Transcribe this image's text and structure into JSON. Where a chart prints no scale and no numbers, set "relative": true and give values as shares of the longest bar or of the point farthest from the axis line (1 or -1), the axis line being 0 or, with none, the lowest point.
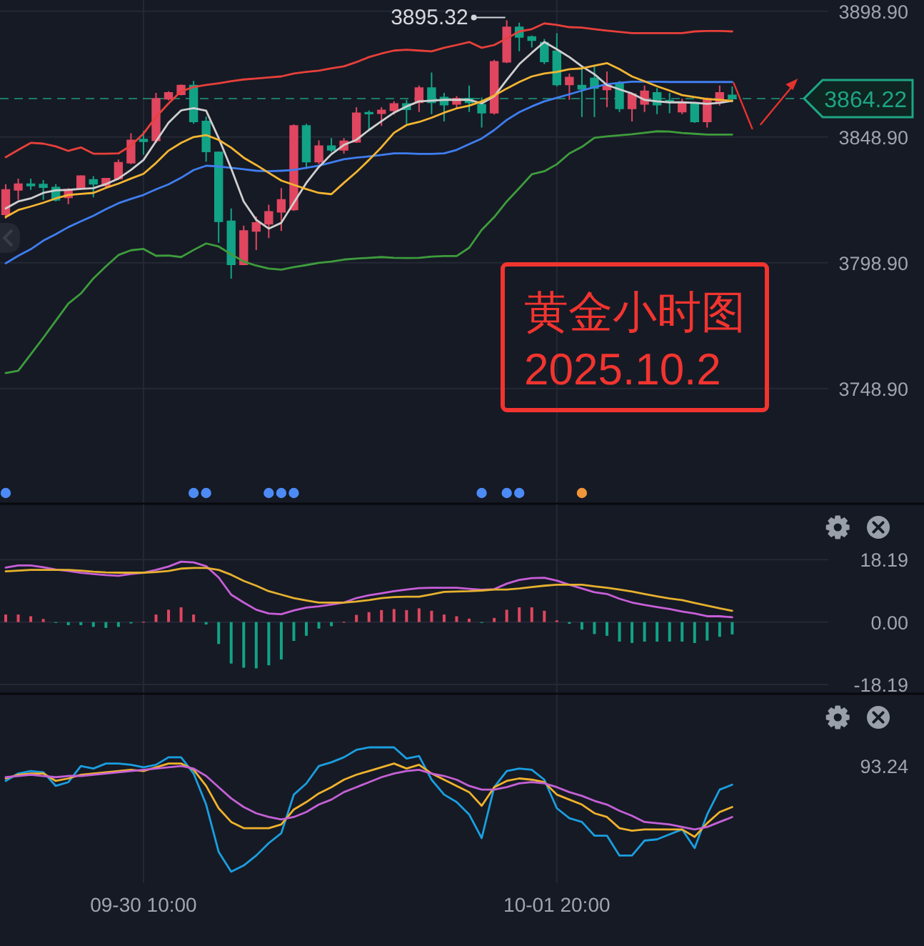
{
  "chart_data": [
    {
      "type": "candlestick",
      "categories": [
        null,
        null,
        null,
        null,
        null,
        null,
        null,
        null,
        null,
        null,
        null,
        null,
        null,
        null,
        null,
        null,
        null,
        null,
        null,
        null,
        null,
        null,
        null,
        null,
        null,
        null,
        null,
        null,
        null,
        null,
        null,
        null,
        null,
        null,
        null,
        null,
        null,
        null,
        null,
        null,
        null,
        null,
        null,
        null,
        null,
        null,
        null,
        null,
        null,
        null,
        null,
        null,
        null,
        null,
        null,
        null,
        null,
        null,
        null
      ],
      "ohlc": [
        [
          3818.2,
          3830.2,
          3816.5,
          3827.9
        ],
        [
          3827.9,
          3832.4,
          3823.9,
          3830.2
        ],
        [
          3830.2,
          3832.4,
          3827.9,
          3829.6
        ],
        [
          3830.0,
          3831.8,
          3823.9,
          3829.0
        ],
        [
          3828.8,
          3830.2,
          3823.3,
          3823.9
        ],
        [
          3824.9,
          3828.6,
          3822.2,
          3828.0
        ],
        [
          3828.6,
          3833.7,
          3828.0,
          3833.4
        ],
        [
          3831.9,
          3833.4,
          3824.9,
          3830.3
        ],
        [
          3829.6,
          3832.4,
          3828.6,
          3832.4
        ],
        [
          3832.4,
          3840.0,
          3831.9,
          3838.7
        ],
        [
          3838.7,
          3850.4,
          3838.1,
          3847.6
        ],
        [
          3847.9,
          3851.3,
          3841.9,
          3847.2
        ],
        [
          3847.6,
          3866.5,
          3846.6,
          3864.1
        ],
        [
          3864.1,
          3867.1,
          3863.5,
          3866.5
        ],
        [
          3865.9,
          3869.8,
          3865.5,
          3869.4
        ],
        [
          3869.4,
          3871.2,
          3854.2,
          3855.1
        ],
        [
          3855.1,
          3857.0,
          3839.1,
          3843.2
        ],
        [
          3842.8,
          3843.2,
          3806.9,
          3815.4
        ],
        [
          3815.4,
          3820.5,
          3792.6,
          3798.3
        ],
        [
          3798.3,
          3813.7,
          3797.9,
          3811.6
        ],
        [
          3811.6,
          3817.3,
          3804.0,
          3814.8
        ],
        [
          3814.4,
          3822.0,
          3808.7,
          3819.2
        ],
        [
          3819.2,
          3828.6,
          3811.6,
          3823.9
        ],
        [
          3820.1,
          3854.0,
          3819.5,
          3853.3
        ],
        [
          3853.3,
          3854.2,
          3836.2,
          3839.1
        ],
        [
          3839.1,
          3847.6,
          3838.1,
          3845.3
        ],
        [
          3845.3,
          3848.5,
          3842.8,
          3843.8
        ],
        [
          3843.8,
          3848.5,
          3842.3,
          3847.2
        ],
        [
          3847.0,
          3860.8,
          3846.6,
          3858.4
        ],
        [
          3858.6,
          3859.5,
          3851.3,
          3858.2
        ],
        [
          3858.4,
          3860.8,
          3853.3,
          3859.5
        ],
        [
          3859.5,
          3863.1,
          3857.8,
          3862.1
        ],
        [
          3862.1,
          3863.7,
          3854.2,
          3859.9
        ],
        [
          3862.7,
          3869.4,
          3858.9,
          3868.4
        ],
        [
          3868.4,
          3874.6,
          3858.0,
          3862.7
        ],
        [
          3864.6,
          3866.5,
          3855.1,
          3861.8
        ],
        [
          3862.1,
          3865.2,
          3860.4,
          3864.2
        ],
        [
          3864.2,
          3869.4,
          3858.9,
          3862.7
        ],
        [
          3861.8,
          3864.6,
          3852.7,
          3858.6
        ],
        [
          3858.6,
          3879.6,
          3857.9,
          3878.8
        ],
        [
          3878.8,
          3895.32,
          3878.3,
          3892.5
        ],
        [
          3892.5,
          3894.4,
          3883.0,
          3888.7
        ],
        [
          3888.7,
          3889.3,
          3884.5,
          3887.4
        ],
        [
          3886.4,
          3887.9,
          3877.9,
          3879.0
        ],
        [
          3883.0,
          3890.2,
          3869.0,
          3869.8
        ],
        [
          3869.8,
          3874.1,
          3863.7,
          3872.6
        ],
        [
          3869.4,
          3876.6,
          3856.9,
          3868.0
        ],
        [
          3872.2,
          3877.2,
          3856.9,
          3868.4
        ],
        [
          3867.8,
          3875.0,
          3860.8,
          3869.7
        ],
        [
          3870.3,
          3871.2,
          3858.9,
          3860.3
        ],
        [
          3860.3,
          3866.5,
          3855.1,
          3866.0
        ],
        [
          3862.1,
          3869.4,
          3858.9,
          3867.1
        ],
        [
          3866.5,
          3868.4,
          3858.0,
          3861.8
        ],
        [
          3863.4,
          3866.5,
          3858.4,
          3862.8
        ],
        [
          3859.0,
          3864.1,
          3858.0,
          3862.7
        ],
        [
          3862.1,
          3862.7,
          3854.5,
          3855.1
        ],
        [
          3855.1,
          3864.6,
          3852.7,
          3864.1
        ],
        [
          3862.7,
          3869.4,
          3861.4,
          3866.5
        ],
        [
          3865.5,
          3869.0,
          3862.7,
          3864.22
        ]
      ],
      "colors": [
        "#e0465f",
        "#e0465f",
        "#12a386",
        "#12a386",
        "#12a386",
        "#e0465f",
        "#e0465f",
        "#12a386",
        "#e0465f",
        "#e0465f",
        "#e0465f",
        "#12a386",
        "#e0465f",
        "#e0465f",
        "#e0465f",
        "#12a386",
        "#12a386",
        "#12a386",
        "#12a386",
        "#e0465f",
        "#e0465f",
        "#e0465f",
        "#e0465f",
        "#e0465f",
        "#12a386",
        "#e0465f",
        "#12a386",
        "#e0465f",
        "#e0465f",
        "#12a386",
        "#e0465f",
        "#e0465f",
        "#12a386",
        "#e0465f",
        "#12a386",
        "#12a386",
        "#e0465f",
        "#12a386",
        "#12a386",
        "#e0465f",
        "#e0465f",
        "#12a386",
        "#12a386",
        "#12a386",
        "#12a386",
        "#e0465f",
        "#12a386",
        "#12a386",
        "#e0465f",
        "#12a386",
        "#e0465f",
        "#e0465f",
        "#12a386",
        "#12a386",
        "#e0465f",
        "#12a386",
        "#e0465f",
        "#e0465f",
        "#12a386"
      ],
      "series": [
        {
          "type": "line",
          "color": "#e8403a",
          "values": [
            3840.9,
            3843.8,
            3846.6,
            3846.3,
            3845.2,
            3843.4,
            3844.8,
            3842.3,
            3842.3,
            3842.4,
            3845.5,
            3850.3,
            3856.9,
            3862.3,
            3867.1,
            3868.8,
            3869.6,
            3870.3,
            3871.1,
            3871.8,
            3872.2,
            3872.6,
            3873.0,
            3874.2,
            3874.8,
            3875.3,
            3876.2,
            3877.0,
            3878.7,
            3880.7,
            3882.1,
            3883.3,
            3883.6,
            3883.3,
            3883.0,
            3884.4,
            3885.5,
            3886.7,
            3884.4,
            3885.5,
            3888.1,
            3890.9,
            3891.8,
            3894.1,
            3893.5,
            3892.6,
            3892.4,
            3891.8,
            3891.2,
            3890.7,
            3890.2,
            3890.2,
            3890.2,
            3890.2,
            3890.2,
            3890.9,
            3891.1,
            3891.1,
            3890.9
          ]
        },
        {
          "type": "line",
          "color": "#3f7ef0",
          "values": [
            3798.7,
            3801.7,
            3804.3,
            3807.7,
            3810.3,
            3813.1,
            3815.4,
            3817.6,
            3820.2,
            3822.6,
            3824.3,
            3825.9,
            3828.1,
            3830.1,
            3832.7,
            3835.8,
            3837.5,
            3837.2,
            3836.7,
            3836.1,
            3835.5,
            3835.3,
            3835.5,
            3835.8,
            3836.7,
            3837.5,
            3838.8,
            3840.1,
            3840.7,
            3841.2,
            3841.8,
            3842.4,
            3842.4,
            3842.2,
            3842.2,
            3842.4,
            3843.8,
            3846.1,
            3848.3,
            3851.7,
            3855.7,
            3858.8,
            3861.1,
            3863.1,
            3864.5,
            3865.9,
            3867.4,
            3868.8,
            3869.9,
            3870.5,
            3870.9,
            3870.9,
            3870.9,
            3870.8,
            3870.8,
            3870.8,
            3870.8,
            3870.8,
            3870.8
          ]
        },
        {
          "type": "line",
          "color": "#3e9d3c",
          "values": [
            3755.1,
            3756.0,
            3762.5,
            3769.1,
            3775.9,
            3782.7,
            3786.7,
            3792.7,
            3797.5,
            3802.0,
            3803.9,
            3804.4,
            3801.7,
            3801.8,
            3801.2,
            3804.0,
            3806.6,
            3805.4,
            3802.3,
            3799.4,
            3797.8,
            3796.6,
            3796.2,
            3797.2,
            3798.0,
            3798.9,
            3799.4,
            3800.2,
            3800.6,
            3800.9,
            3801.2,
            3800.9,
            3800.8,
            3800.9,
            3801.4,
            3801.6,
            3801.6,
            3804.9,
            3812.0,
            3817.1,
            3823.3,
            3828.6,
            3834.1,
            3835.3,
            3838.1,
            3842.4,
            3845.0,
            3848.6,
            3849.2,
            3849.6,
            3850.0,
            3850.6,
            3851.2,
            3851.1,
            3850.5,
            3850.2,
            3849.9,
            3849.9,
            3849.9
          ]
        },
        {
          "type": "line",
          "color": "#cfcfcf",
          "values": [
            3820.5,
            3823.3,
            3824.5,
            3826.7,
            3827.7,
            3827.9,
            3828.3,
            3828.6,
            3830.2,
            3832.4,
            3835.8,
            3839.8,
            3847.2,
            3854.6,
            3859.5,
            3860.4,
            3859.4,
            3848.5,
            3836.4,
            3823.3,
            3816.0,
            3812.5,
            3814.8,
            3822.8,
            3830.7,
            3837.0,
            3842.1,
            3845.8,
            3847.8,
            3851.7,
            3855.2,
            3858.6,
            3861.1,
            3863.1,
            3863.4,
            3863.7,
            3863.7,
            3863.7,
            3862.3,
            3865.1,
            3871.6,
            3877.9,
            3882.4,
            3886.7,
            3883.8,
            3880.7,
            3877.0,
            3873.9,
            3869.6,
            3867.9,
            3866.2,
            3863.7,
            3863.1,
            3862.7,
            3862.7,
            3862.5,
            3862.1,
            3862.5,
            3863.3
          ]
        },
        {
          "type": "line",
          "color": "#f4b532",
          "values": [
            3817.1,
            3819.9,
            3821.3,
            3822.8,
            3824.5,
            3825.9,
            3826.3,
            3826.7,
            3828.7,
            3830.4,
            3832.4,
            3834.3,
            3838.6,
            3843.5,
            3846.6,
            3848.9,
            3849.7,
            3847.8,
            3844.7,
            3840.7,
            3837.8,
            3834.7,
            3831.6,
            3829.9,
            3828.2,
            3826.7,
            3826.2,
            3830.7,
            3835.0,
            3839.8,
            3844.9,
            3850.6,
            3853.7,
            3854.9,
            3856.6,
            3858.6,
            3860.3,
            3861.4,
            3863.1,
            3865.4,
            3868.2,
            3870.8,
            3873.0,
            3874.2,
            3874.8,
            3875.9,
            3876.2,
            3877.3,
            3878.3,
            3875.9,
            3873.0,
            3871.1,
            3869.1,
            3867.4,
            3865.6,
            3864.8,
            3864.0,
            3863.7,
            3863.3
          ]
        }
      ],
      "ylim": [
        3703.4,
        3903.4
      ],
      "yticks": [
        {
          "value": 3748.9,
          "label": "3748.90"
        },
        {
          "value": 3798.9,
          "label": "3798.90"
        },
        {
          "value": 3848.9,
          "label": "3848.90"
        },
        {
          "value": 3898.9,
          "label": "3898.90"
        }
      ],
      "grid": true,
      "ref_lines": [
        {
          "axis": "y",
          "value": 3864.22,
          "label": "3864.22",
          "color": "#1ea584",
          "line_style": "dashed"
        }
      ],
      "annotations": [
        "3895.32",
        "黄金小时图",
        "2025.10.2"
      ],
      "tick_labels": "y"
    },
    {
      "type": "bar",
      "categories": [
        null,
        null,
        null,
        null,
        null,
        null,
        null,
        null,
        null,
        null,
        null,
        null,
        null,
        null,
        null,
        null,
        null,
        null,
        null,
        null,
        null,
        null,
        null,
        null,
        null,
        null,
        null,
        null,
        null,
        null,
        null,
        null,
        null,
        null,
        null,
        null,
        null,
        null,
        null,
        null,
        null,
        null,
        null,
        null,
        null,
        null,
        null,
        null,
        null,
        null,
        null,
        null,
        null,
        null,
        null,
        null,
        null,
        null,
        null
      ],
      "series": [
        {
          "values": [
            2.2,
            2.2,
            1.7,
            0.9,
            -0.2,
            -0.9,
            -0.9,
            -1.4,
            -1.7,
            -1.4,
            -0.4,
            0.1,
            2.2,
            3.6,
            4.3,
            2.2,
            -0.7,
            -6.4,
            -12.1,
            -13.3,
            -13.5,
            -12.6,
            -10.9,
            -5.5,
            -4.0,
            -1.9,
            -1.2,
            0.1,
            2.1,
            2.9,
            3.5,
            3.8,
            3.5,
            4.0,
            3.3,
            2.2,
            1.7,
            1.0,
            -0.2,
            1.2,
            3.6,
            4.3,
            4.3,
            3.3,
            0.5,
            -0.5,
            -2.2,
            -3.5,
            -4.0,
            -5.7,
            -6.1,
            -5.7,
            -5.7,
            -5.7,
            -5.7,
            -6.1,
            -5.4,
            -4.3,
            -3.6
          ],
          "colors": [
            "#e0465f",
            "#e0465f",
            "#e0465f",
            "#e0465f",
            "#12a386",
            "#12a386",
            "#12a386",
            "#12a386",
            "#12a386",
            "#12a386",
            "#12a386",
            "#e0465f",
            "#e0465f",
            "#e0465f",
            "#e0465f",
            "#e0465f",
            "#12a386",
            "#12a386",
            "#12a386",
            "#12a386",
            "#12a386",
            "#12a386",
            "#12a386",
            "#12a386",
            "#12a386",
            "#12a386",
            "#12a386",
            "#e0465f",
            "#e0465f",
            "#e0465f",
            "#e0465f",
            "#e0465f",
            "#e0465f",
            "#e0465f",
            "#e0465f",
            "#e0465f",
            "#e0465f",
            "#e0465f",
            "#12a386",
            "#e0465f",
            "#e0465f",
            "#e0465f",
            "#e0465f",
            "#e0465f",
            "#e0465f",
            "#12a386",
            "#12a386",
            "#12a386",
            "#12a386",
            "#12a386",
            "#12a386",
            "#12a386",
            "#12a386",
            "#12a386",
            "#12a386",
            "#12a386",
            "#12a386",
            "#12a386",
            "#12a386"
          ]
        },
        {
          "type": "line",
          "color": "#c85fd8",
          "values": [
            15.9,
            16.5,
            16.5,
            16.0,
            15.3,
            14.9,
            14.4,
            14.0,
            13.7,
            13.5,
            14.0,
            14.4,
            15.2,
            16.2,
            17.6,
            17.4,
            16.3,
            13.0,
            8.0,
            5.7,
            3.6,
            2.5,
            2.3,
            3.4,
            4.2,
            4.6,
            5.1,
            5.7,
            7.0,
            7.8,
            8.4,
            9.0,
            9.5,
            9.9,
            10.0,
            10.0,
            10.0,
            9.7,
            9.4,
            9.6,
            11.2,
            12.3,
            12.8,
            12.9,
            12.1,
            10.9,
            9.8,
            8.7,
            8.2,
            6.8,
            5.7,
            5.0,
            4.4,
            3.8,
            3.1,
            2.5,
            1.7,
            1.7,
            1.4
          ]
        },
        {
          "type": "line",
          "color": "#e6b12e",
          "values": [
            14.8,
            15.0,
            15.2,
            15.2,
            15.2,
            15.2,
            15.0,
            14.7,
            14.5,
            14.4,
            14.4,
            14.4,
            14.6,
            14.9,
            15.6,
            15.8,
            15.8,
            15.2,
            13.8,
            12.0,
            10.6,
            9.0,
            8.0,
            7.0,
            6.3,
            5.7,
            5.7,
            5.7,
            6.0,
            6.4,
            7.0,
            7.3,
            7.4,
            7.4,
            8.1,
            8.8,
            8.9,
            9.0,
            9.2,
            9.5,
            9.5,
            9.8,
            10.2,
            10.6,
            10.9,
            10.9,
            10.9,
            10.4,
            10.0,
            9.5,
            8.9,
            8.2,
            7.5,
            6.9,
            6.4,
            5.6,
            4.8,
            4.0,
            3.3
          ]
        }
      ],
      "ylim": [
        -20.7,
        34.3
      ],
      "yticks": [
        {
          "value": -18.19,
          "label": "-18.19"
        },
        {
          "value": 0,
          "label": "0.00"
        },
        {
          "value": 18.19,
          "label": "18.19"
        }
      ],
      "grid": true,
      "tick_labels": "y"
    },
    {
      "type": "line",
      "categories": [
        null,
        null,
        null,
        null,
        null,
        null,
        null,
        null,
        null,
        null,
        null,
        "09-30 10:00",
        null,
        null,
        null,
        null,
        null,
        null,
        null,
        null,
        null,
        null,
        null,
        null,
        null,
        null,
        null,
        null,
        null,
        null,
        null,
        null,
        null,
        null,
        null,
        null,
        null,
        null,
        null,
        null,
        null,
        null,
        null,
        null,
        "10-01 20:00",
        null,
        null,
        null,
        null,
        null,
        null,
        null,
        null,
        null,
        null,
        null,
        null,
        null,
        null
      ],
      "relative": true,
      "series": [
        {
          "color": "#1a9fe0",
          "values": [
            0.73,
            0.79,
            0.81,
            0.8,
            0.69,
            0.72,
            0.85,
            0.83,
            0.87,
            0.87,
            0.86,
            0.84,
            0.86,
            0.92,
            0.92,
            0.79,
            0.54,
            0.16,
            0,
            0.05,
            0.13,
            0.23,
            0.31,
            0.62,
            0.71,
            0.85,
            0.88,
            0.92,
            0.98,
            1,
            1,
            1,
            0.91,
            0.93,
            0.74,
            0.62,
            0.56,
            0.46,
            0.27,
            0.68,
            0.81,
            0.83,
            0.82,
            0.74,
            0.51,
            0.43,
            0.4,
            0.29,
            0.29,
            0.13,
            0.13,
            0.25,
            0.26,
            0.3,
            0.34,
            0.19,
            0.46,
            0.66,
            0.7
          ]
        },
        {
          "color": "#f0b22c",
          "values": [
            0.75,
            0.78,
            0.79,
            0.79,
            0.73,
            0.75,
            0.78,
            0.79,
            0.8,
            0.81,
            0.82,
            0.81,
            0.84,
            0.87,
            0.87,
            0.82,
            0.69,
            0.51,
            0.4,
            0.35,
            0.35,
            0.35,
            0.38,
            0.5,
            0.56,
            0.63,
            0.68,
            0.74,
            0.78,
            0.81,
            0.84,
            0.87,
            0.83,
            0.86,
            0.79,
            0.74,
            0.69,
            0.64,
            0.53,
            0.68,
            0.73,
            0.75,
            0.74,
            0.72,
            0.62,
            0.58,
            0.54,
            0.47,
            0.44,
            0.35,
            0.33,
            0.34,
            0.34,
            0.34,
            0.34,
            0.28,
            0.39,
            0.48,
            0.52
          ]
        },
        {
          "color": "#c461d6",
          "values": [
            0.76,
            0.77,
            0.78,
            0.77,
            0.76,
            0.77,
            0.77,
            0.78,
            0.79,
            0.8,
            0.81,
            0.82,
            0.83,
            0.84,
            0.85,
            0.83,
            0.77,
            0.68,
            0.59,
            0.52,
            0.47,
            0.44,
            0.42,
            0.44,
            0.48,
            0.54,
            0.58,
            0.64,
            0.68,
            0.72,
            0.76,
            0.79,
            0.81,
            0.82,
            0.79,
            0.77,
            0.74,
            0.69,
            0.66,
            0.66,
            0.68,
            0.71,
            0.72,
            0.71,
            0.68,
            0.64,
            0.61,
            0.57,
            0.54,
            0.49,
            0.45,
            0.4,
            0.39,
            0.38,
            0.36,
            0.34,
            0.36,
            0.4,
            0.44
          ]
        }
      ],
      "annotations": [
        "93.24"
      ],
      "grid": "x",
      "tick_labels": "x"
    }
  ]
}
